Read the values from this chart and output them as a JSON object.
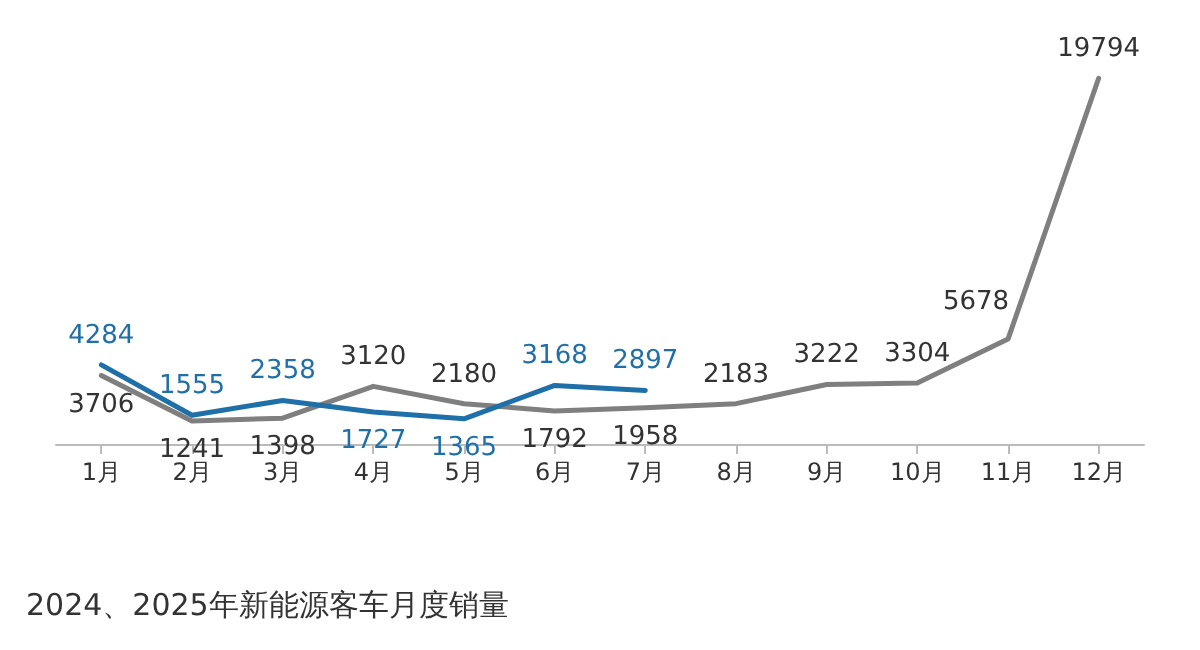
{
  "chart_data": {
    "type": "line",
    "title": "2024、2025年新能源客车月度销量",
    "categories": [
      "1月",
      "2月",
      "3月",
      "4月",
      "5月",
      "6月",
      "7月",
      "8月",
      "9月",
      "10月",
      "11月",
      "12月"
    ],
    "series": [
      {
        "color": "#7f7f7f",
        "values": [
          3706,
          1241,
          1398,
          3120,
          2180,
          1792,
          1958,
          2183,
          3222,
          3304,
          5678,
          19794
        ]
      },
      {
        "color": "#1f6fa8",
        "values": [
          4284,
          1555,
          2358,
          1727,
          1365,
          3168,
          2897,
          null,
          null,
          null,
          null,
          null
        ]
      }
    ],
    "data_labels": true,
    "tick_labels": "x",
    "grid": false,
    "marker": "none"
  }
}
